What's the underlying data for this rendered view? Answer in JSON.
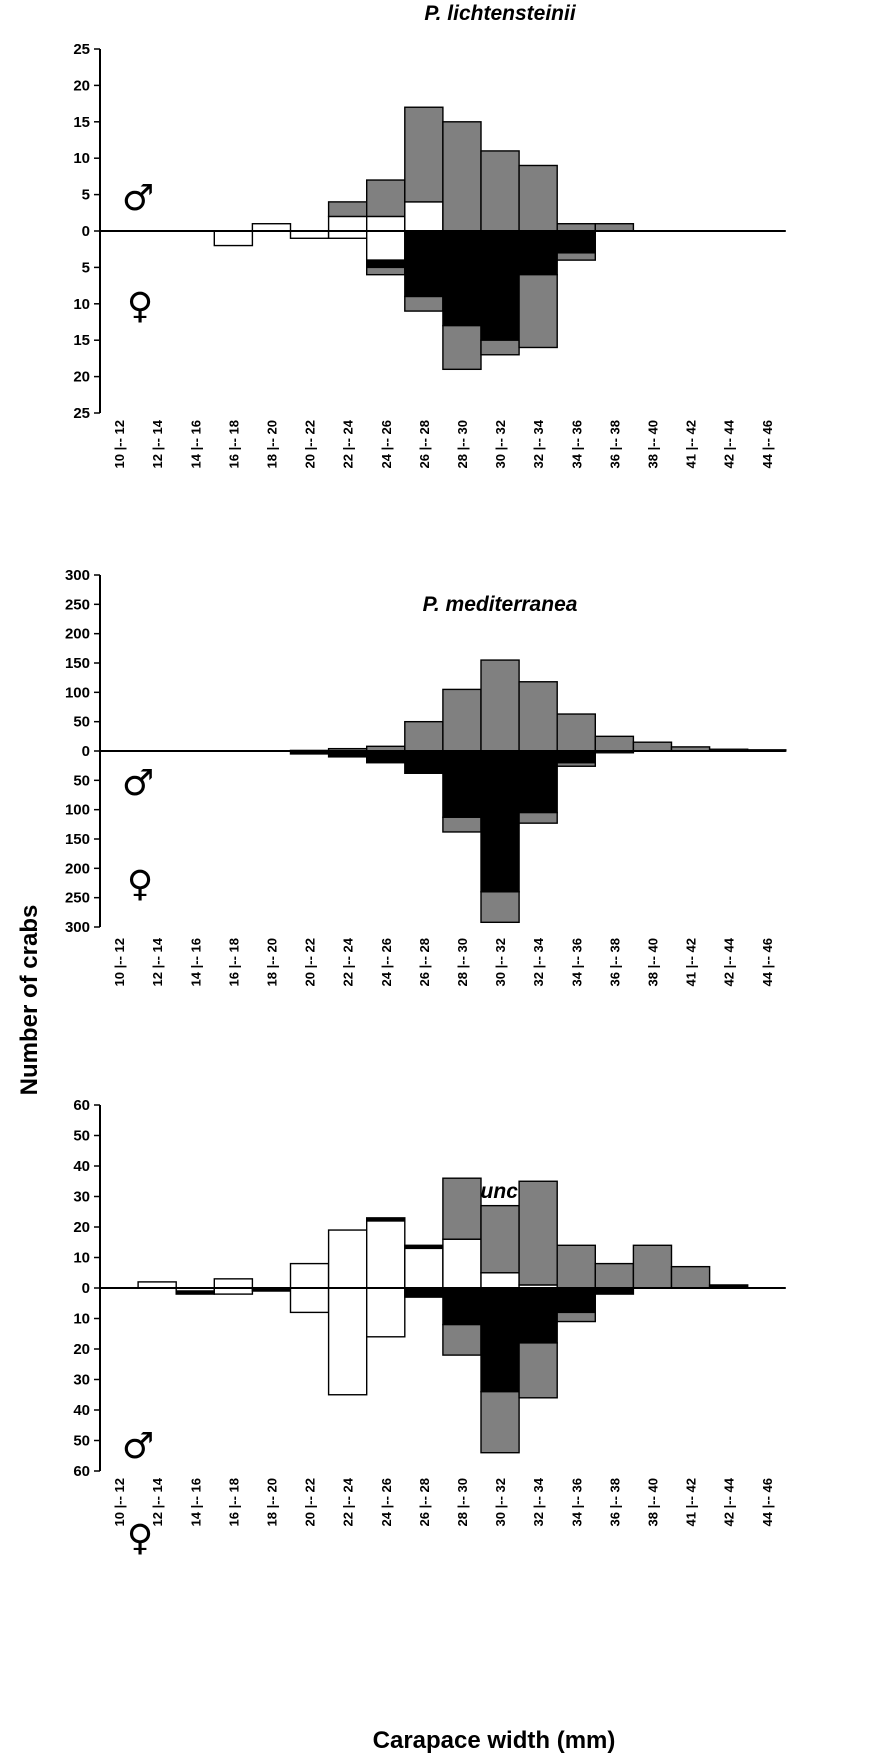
{
  "ylabel": "Number of crabs",
  "xlabel": "Carapace width (mm)",
  "symbols": {
    "male": "♂",
    "female": "♀"
  },
  "colors": {
    "white_stage": "#ffffff",
    "grey_stage": "#808080",
    "black_stage": "#000000"
  },
  "chart_data": [
    {
      "type": "bar",
      "title": "P. lichtensteinii",
      "categories": [
        "10 |-- 12",
        "12 |-- 14",
        "14 |-- 16",
        "16 |-- 18",
        "18 |-- 20",
        "20 |-- 22",
        "22 |-- 24",
        "24 |-- 26",
        "26 |-- 28",
        "28 |-- 30",
        "30 |-- 32",
        "32 |-- 34",
        "34 |-- 36",
        "36 |-- 38",
        "38 |-- 40",
        "41 |-- 42",
        "42 |-- 44",
        "44 |-- 46"
      ],
      "yticks": [
        0,
        5,
        10,
        15,
        20,
        25
      ],
      "ylim": [
        -25,
        25
      ],
      "series": [
        {
          "sex": "male",
          "color": "white",
          "values": [
            0,
            0,
            0,
            0,
            1,
            0,
            2,
            2,
            4,
            0,
            0,
            0,
            0,
            0,
            0,
            0,
            0,
            0
          ]
        },
        {
          "sex": "male",
          "color": "grey",
          "values": [
            0,
            0,
            0,
            0,
            0,
            0,
            2,
            5,
            13,
            15,
            11,
            9,
            1,
            1,
            0,
            0,
            0,
            0
          ]
        },
        {
          "sex": "female",
          "color": "white",
          "values": [
            0,
            0,
            0,
            2,
            0,
            1,
            1,
            4,
            0,
            0,
            0,
            0,
            0,
            0,
            0,
            0,
            0,
            0
          ]
        },
        {
          "sex": "female",
          "color": "grey",
          "values": [
            0,
            0,
            0,
            0,
            0,
            0,
            0,
            1,
            2,
            6,
            2,
            10,
            1,
            0,
            0,
            0,
            0,
            0
          ]
        },
        {
          "sex": "female",
          "color": "black",
          "values": [
            0,
            0,
            0,
            0,
            0,
            0,
            0,
            1,
            9,
            13,
            15,
            6,
            3,
            0,
            0,
            0,
            0,
            0
          ]
        }
      ]
    },
    {
      "type": "bar",
      "title": "P. mediterranea",
      "categories": [
        "10 |-- 12",
        "12 |-- 14",
        "14 |-- 16",
        "16 |-- 18",
        "18 |-- 20",
        "20 |-- 22",
        "22 |-- 24",
        "24 |-- 26",
        "26 |-- 28",
        "28 |-- 30",
        "30 |-- 32",
        "32 |-- 34",
        "34 |-- 36",
        "36 |-- 38",
        "38 |-- 40",
        "41 |-- 42",
        "42 |-- 44",
        "44 |-- 46"
      ],
      "yticks": [
        0,
        50,
        100,
        150,
        200,
        250,
        300
      ],
      "ylim": [
        -300,
        300
      ],
      "series": [
        {
          "sex": "male",
          "color": "grey",
          "values": [
            0,
            0,
            0,
            0,
            0,
            1,
            4,
            8,
            50,
            105,
            155,
            118,
            63,
            25,
            15,
            7,
            3,
            2
          ]
        },
        {
          "sex": "female",
          "color": "grey",
          "values": [
            0,
            0,
            0,
            0,
            0,
            0,
            0,
            0,
            0,
            25,
            52,
            18,
            6,
            3,
            0,
            0,
            0,
            0
          ]
        },
        {
          "sex": "female",
          "color": "black",
          "values": [
            0,
            0,
            0,
            0,
            0,
            5,
            10,
            20,
            38,
            113,
            240,
            105,
            20,
            0,
            0,
            0,
            0,
            0
          ]
        }
      ]
    },
    {
      "type": "bar",
      "title": "P. punctata",
      "categories": [
        "10 |-- 12",
        "12 |-- 14",
        "14 |-- 16",
        "16 |-- 18",
        "18 |-- 20",
        "20 |-- 22",
        "22 |-- 24",
        "24 |-- 26",
        "26 |-- 28",
        "28 |-- 30",
        "30 |-- 32",
        "32 |-- 34",
        "34 |-- 36",
        "36 |-- 38",
        "38 |-- 40",
        "41 |-- 42",
        "42 |-- 44",
        "44 |-- 46"
      ],
      "yticks": [
        0,
        10,
        20,
        30,
        40,
        50,
        60
      ],
      "ylim": [
        -60,
        60
      ],
      "series": [
        {
          "sex": "male",
          "color": "white",
          "values": [
            0,
            2,
            0,
            3,
            0,
            8,
            19,
            22,
            13,
            16,
            5,
            1,
            0,
            0,
            0,
            0,
            0,
            0
          ]
        },
        {
          "sex": "male",
          "color": "black",
          "values": [
            0,
            0,
            0,
            0,
            0,
            0,
            0,
            1,
            1,
            0,
            0,
            0,
            0,
            0,
            0,
            0,
            1,
            0
          ]
        },
        {
          "sex": "male",
          "color": "grey",
          "values": [
            0,
            0,
            0,
            0,
            0,
            0,
            0,
            0,
            0,
            20,
            22,
            34,
            14,
            8,
            14,
            7,
            0,
            0
          ]
        },
        {
          "sex": "female",
          "color": "white",
          "values": [
            0,
            0,
            1,
            2,
            0,
            8,
            35,
            16,
            0,
            0,
            0,
            0,
            0,
            0,
            0,
            0,
            0,
            0
          ]
        },
        {
          "sex": "female",
          "color": "grey",
          "values": [
            0,
            0,
            0,
            0,
            0,
            0,
            0,
            0,
            0,
            10,
            20,
            18,
            3,
            0,
            0,
            0,
            0,
            0
          ]
        },
        {
          "sex": "female",
          "color": "black",
          "values": [
            0,
            0,
            1,
            0,
            1,
            0,
            0,
            0,
            3,
            12,
            34,
            18,
            8,
            2,
            0,
            0,
            0,
            0
          ]
        }
      ]
    }
  ]
}
